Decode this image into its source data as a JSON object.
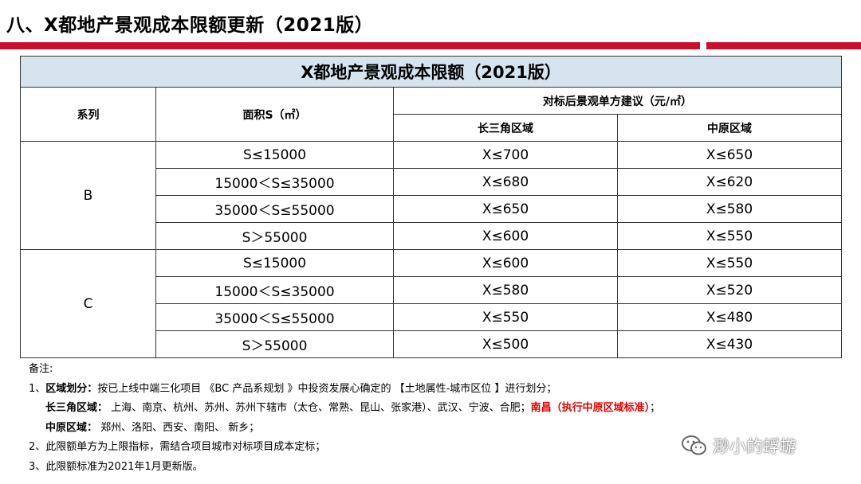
{
  "slide": {
    "title": "八、X都地产景观成本限额更新（2021版）",
    "accent_color": "#c8102e",
    "header_fill": "#d6e4f0"
  },
  "table": {
    "title": "X都地产景观成本限额（2021版）",
    "col_series": "系列",
    "col_area": "面积S（㎡）",
    "col_group": "对标后景观单方建议（元/㎡）",
    "col_yrd": "长三角区域",
    "col_central": "中原区域",
    "groups": [
      {
        "series": "B",
        "rows": [
          {
            "area": "S≤15000",
            "yrd": "X≤700",
            "central": "X≤650"
          },
          {
            "area": "15000＜S≤35000",
            "yrd": "X≤680",
            "central": "X≤620"
          },
          {
            "area": "35000＜S≤55000",
            "yrd": "X≤650",
            "central": "X≤580"
          },
          {
            "area": "S＞55000",
            "yrd": "X≤600",
            "central": "X≤550"
          }
        ]
      },
      {
        "series": "C",
        "rows": [
          {
            "area": "S≤15000",
            "yrd": "X≤600",
            "central": "X≤550"
          },
          {
            "area": "15000＜S≤35000",
            "yrd": "X≤580",
            "central": "X≤520"
          },
          {
            "area": "35000＜S≤55000",
            "yrd": "X≤550",
            "central": "X≤480"
          },
          {
            "area": "S＞55000",
            "yrd": "X≤500",
            "central": "X≤430"
          }
        ]
      }
    ]
  },
  "notes": {
    "heading": "备注:",
    "n1_prefix": "1、",
    "n1_label": "区域划分：",
    "n1_text": "按已上线中端三化项目 《BC 产品系规划 》中投资发展心确定的 【土地属性-城市区位 】进行划分；",
    "yrd_label": "长三角区域：",
    "yrd_text": " 上海、南京、杭州、苏州、苏州下辖市（太仓、常熟、昆山、张家港）、武汉、宁波、合肥；",
    "yrd_red": "南昌（执行中原区域标准）",
    "yrd_end": "；",
    "central_label": "中原区域：",
    "central_text": " 郑州、洛阳、西安、南阳、 新乡；",
    "n2": "2、此限额单方为上限指标，需结合项目城市对标项目成本定标；",
    "n3": "3、此限额标准为2021年1月更新版。"
  },
  "watermark": {
    "text": "渺小的蜉蝣",
    "icon": "wechat-icon"
  }
}
